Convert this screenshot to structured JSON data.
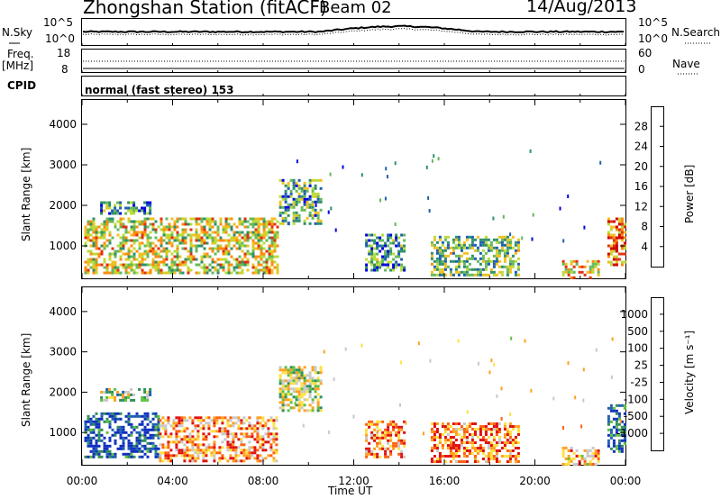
{
  "header": {
    "station": "Zhongshan Station (fitACF)",
    "beam": "Beam 02",
    "date": "14/Aug/2013"
  },
  "top_panels": {
    "nsky_label": "N.Sky",
    "nsky_ticks": [
      "10^5",
      "10^0"
    ],
    "nsearch_label": "N.Search",
    "nsearch_ticks": [
      "10^5",
      "10^0"
    ],
    "freq_label": "Freq.",
    "freq_unit": "[MHz]",
    "freq_ticks": [
      "18",
      "8"
    ],
    "nave_label": "Nave",
    "nave_ticks": [
      "60",
      "0"
    ],
    "cpid_label": "CPID",
    "cpid_value": "normal (fast stereo) 153"
  },
  "chart_data": [
    {
      "type": "heatmap",
      "name": "power-panel",
      "ylabel": "Slant Range [km]",
      "ylim": [
        200,
        4600
      ],
      "yticks": [
        "4000",
        "3000",
        "2000",
        "1000"
      ],
      "xlim": [
        0,
        24
      ],
      "colorbar_label": "Power [dB]",
      "colorbar_ticks": [
        "28",
        "24",
        "20",
        "16",
        "12",
        "8",
        "4"
      ],
      "colors": [
        "#0000e0",
        "#1f5fb0",
        "#2f8f6a",
        "#66b85a",
        "#b8dc3a",
        "#f0c020",
        "#ff8a10",
        "#e03010",
        "#d00000"
      ],
      "patches": [
        {
          "t0": 0.1,
          "t1": 8.6,
          "r0": 300,
          "r1": 1700,
          "level": 0.55
        },
        {
          "t0": 0.8,
          "t1": 3.0,
          "r0": 1800,
          "r1": 2100,
          "level": 0.3
        },
        {
          "t0": 8.7,
          "t1": 10.6,
          "r0": 1550,
          "r1": 2650,
          "level": 0.35
        },
        {
          "t0": 12.5,
          "t1": 14.2,
          "r0": 400,
          "r1": 1300,
          "level": 0.3
        },
        {
          "t0": 15.4,
          "t1": 19.3,
          "r0": 250,
          "r1": 1250,
          "level": 0.4
        },
        {
          "t0": 21.2,
          "t1": 22.8,
          "r0": 200,
          "r1": 650,
          "level": 0.6
        },
        {
          "t0": 23.2,
          "t1": 24.0,
          "r0": 500,
          "r1": 1700,
          "level": 0.75
        }
      ]
    },
    {
      "type": "heatmap",
      "name": "velocity-panel",
      "ylabel": "Slant Range [km]",
      "ylim": [
        200,
        4600
      ],
      "yticks": [
        "4000",
        "3000",
        "2000",
        "1000"
      ],
      "xlim": [
        0,
        24
      ],
      "xticks": [
        "00:00",
        "04:00",
        "08:00",
        "12:00",
        "16:00",
        "20:00",
        "00:00"
      ],
      "xlabel": "Time UT",
      "colorbar_label": "Velocity [m s⁻¹]",
      "colorbar_ticks": [
        "1000",
        "500",
        "100",
        "25",
        "-25",
        "-100",
        "-500",
        "-1000"
      ],
      "colors": [
        "#1030c0",
        "#2060b0",
        "#2f8f5a",
        "#60c040",
        "#c8c8c8",
        "#ffe040",
        "#ffa020",
        "#ff6010",
        "#e01010"
      ],
      "patches": [
        {
          "t0": 0.1,
          "t1": 3.4,
          "r0": 400,
          "r1": 1500,
          "level": 0.1
        },
        {
          "t0": 3.4,
          "t1": 8.6,
          "r0": 300,
          "r1": 1400,
          "level": 0.75
        },
        {
          "t0": 0.8,
          "t1": 3.0,
          "r0": 1800,
          "r1": 2100,
          "level": 0.45
        },
        {
          "t0": 8.7,
          "t1": 10.6,
          "r0": 1550,
          "r1": 2650,
          "level": 0.5
        },
        {
          "t0": 12.5,
          "t1": 14.2,
          "r0": 400,
          "r1": 1300,
          "level": 0.8
        },
        {
          "t0": 15.4,
          "t1": 19.3,
          "r0": 250,
          "r1": 1250,
          "level": 0.8
        },
        {
          "t0": 21.2,
          "t1": 22.8,
          "r0": 200,
          "r1": 650,
          "level": 0.7
        },
        {
          "t0": 23.2,
          "t1": 24.0,
          "r0": 500,
          "r1": 1700,
          "level": 0.15
        }
      ]
    }
  ]
}
